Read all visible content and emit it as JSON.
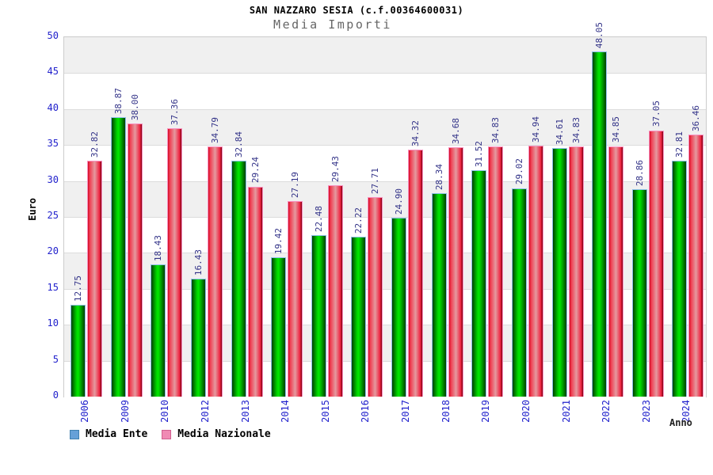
{
  "header": {
    "title": "SAN NAZZARO SESIA (c.f.00364600031)",
    "subtitle": "Media Importi"
  },
  "y_axis": {
    "title": "Euro",
    "ticks": [
      0,
      5,
      10,
      15,
      20,
      25,
      30,
      35,
      40,
      45,
      50
    ]
  },
  "x_axis": {
    "title": "Anno"
  },
  "legend": {
    "items": [
      {
        "label": "Media Ente",
        "swatch_color": "#66a0d8",
        "swatch_border": "#4080b0"
      },
      {
        "label": "Media Nazionale",
        "swatch_color": "#f08ab4",
        "swatch_border": "#d06090"
      }
    ]
  },
  "colors": {
    "bar_ente_main": "#00e800",
    "bar_ente_edge": "#003f00",
    "bar_ente_outline": "#8cc0e8",
    "bar_naz_main": "#e59aa0",
    "bar_naz_edge": "#ef2340",
    "bar_naz_outline": "#f890c0",
    "tick_label": "#2222cc",
    "value_label": "#333388",
    "band_gray": "#f0f0f0",
    "plot_border": "#cccccc",
    "subtitle_gray": "#666666"
  },
  "chart_data": {
    "type": "bar",
    "title": "SAN NAZZARO SESIA (c.f.00364600031)",
    "subtitle": "Media Importi",
    "xlabel": "Anno",
    "ylabel": "Euro",
    "ylim": [
      0,
      50
    ],
    "grid_step": 5,
    "grid": true,
    "legend_position": "bottom",
    "value_labels_shown": true,
    "categories": [
      "2006",
      "2009",
      "2010",
      "2012",
      "2013",
      "2014",
      "2015",
      "2016",
      "2017",
      "2018",
      "2019",
      "2020",
      "2021",
      "2022",
      "2023",
      "2024"
    ],
    "series": [
      {
        "name": "Media Ente",
        "values": [
          12.75,
          38.87,
          18.43,
          16.43,
          32.84,
          19.42,
          22.48,
          22.22,
          24.9,
          28.34,
          31.52,
          29.02,
          34.61,
          48.05,
          28.86,
          32.81
        ]
      },
      {
        "name": "Media Nazionale",
        "values": [
          32.82,
          38.0,
          37.36,
          34.79,
          29.24,
          27.19,
          29.43,
          27.71,
          34.32,
          34.68,
          34.83,
          34.94,
          34.83,
          34.85,
          37.05,
          36.46
        ]
      }
    ]
  }
}
